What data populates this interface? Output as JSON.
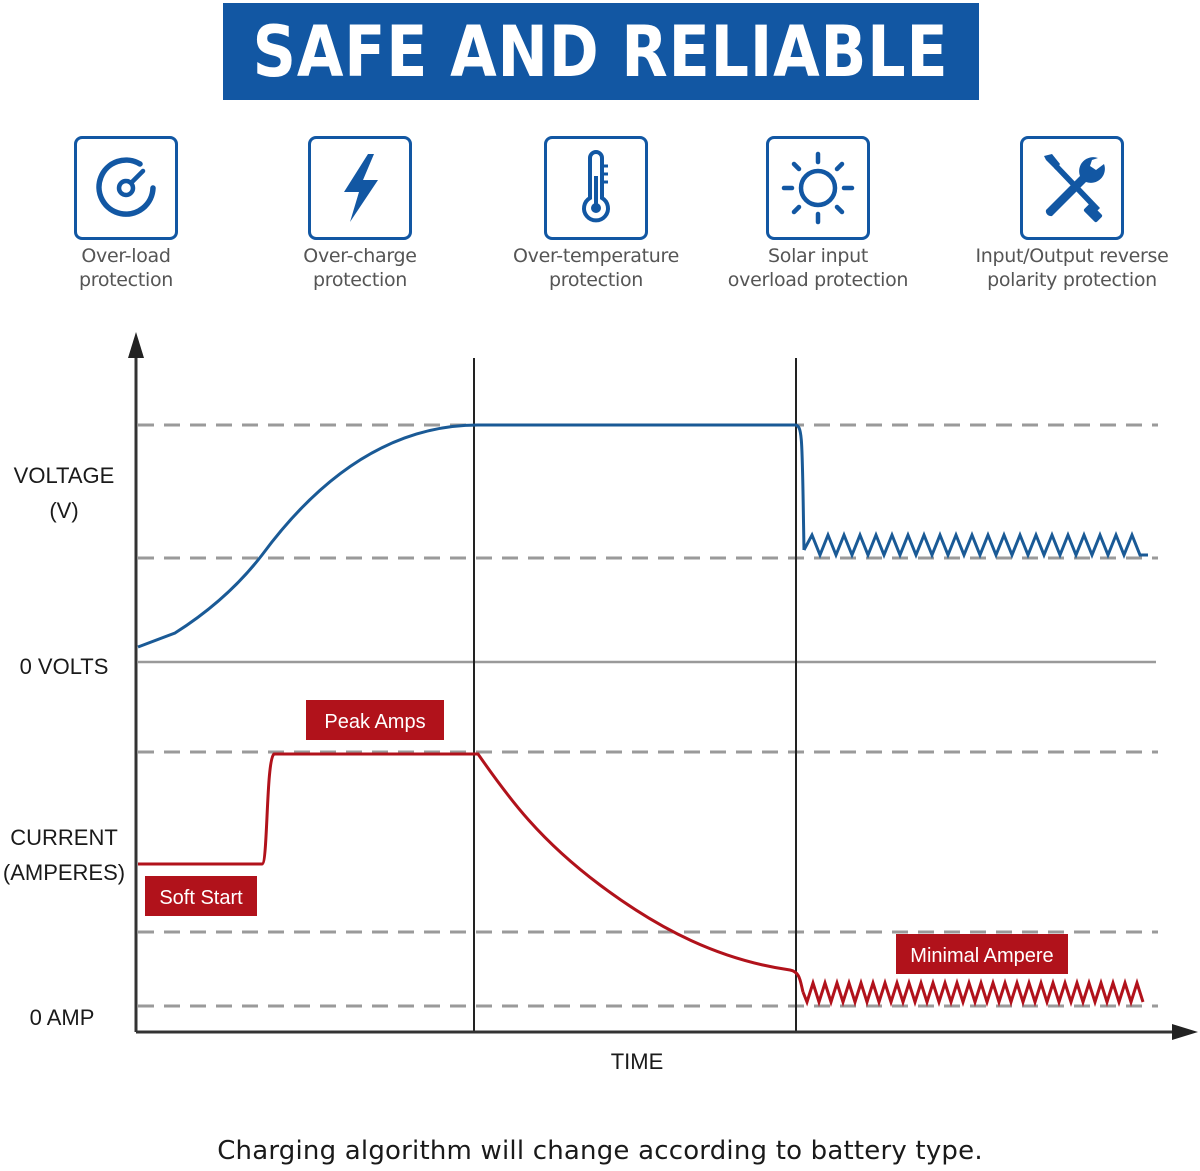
{
  "banner": {
    "title": "SAFE AND RELIABLE",
    "color": "#1257a3"
  },
  "features": [
    {
      "icon": "gauge-icon",
      "line1": "Over-load",
      "line2": "protection"
    },
    {
      "icon": "lightning-icon",
      "line1": "Over-charge",
      "line2": "protection"
    },
    {
      "icon": "thermometer-icon",
      "line1": "Over-temperature",
      "line2": "protection"
    },
    {
      "icon": "sun-icon",
      "line1": "Solar input",
      "line2": "overload protection"
    },
    {
      "icon": "tools-icon",
      "line1": "Input/Output reverse",
      "line2": "polarity protection"
    }
  ],
  "diagram": {
    "voltage_label_1": "VOLTAGE",
    "voltage_label_2": "(V)",
    "zero_volts": "0 VOLTS",
    "current_label_1": "CURRENT",
    "current_label_2": "(AMPERES)",
    "zero_amp": "0 AMP",
    "x_axis": "TIME",
    "tags": {
      "peak": "Peak Amps",
      "soft_start": "Soft Start",
      "minimal": "Minimal Ampere"
    },
    "colors": {
      "voltage": "#1a5a96",
      "current": "#b1121b",
      "tag": "#b1121b",
      "dashed": "#9a9a9a"
    }
  },
  "footer": "Charging algorithm will change according to battery type."
}
